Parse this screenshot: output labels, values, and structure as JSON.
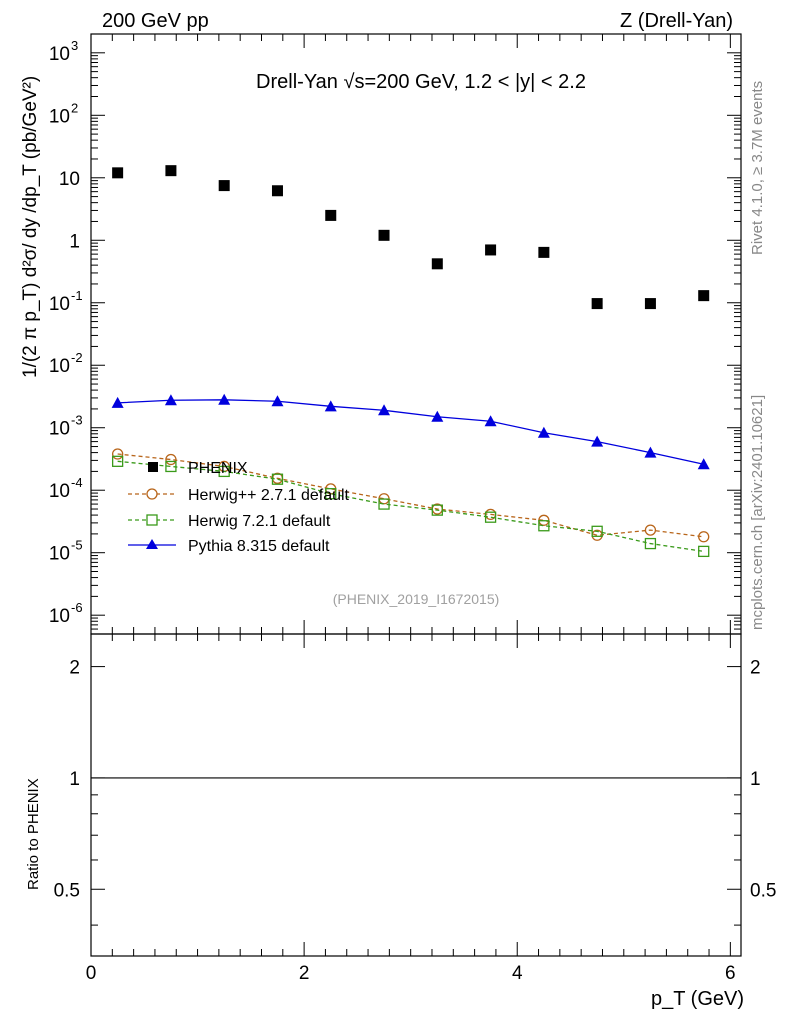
{
  "header": {
    "left": "200 GeV pp",
    "right": "Z (Drell-Yan)"
  },
  "side_labels": {
    "rivet": "Rivet 4.1.0, ≥ 3.7M events",
    "mcplots": "mcplots.cern.ch [arXiv:2401.10621]"
  },
  "reference": "(PHENIX_2019_I1672015)",
  "colors": {
    "phenix": "#000000",
    "herwigpp": "#b8651a",
    "herwig7": "#3a9a1a",
    "pythia": "#0000dd"
  },
  "chart_data": {
    "type": "scatter",
    "title": "Drell-Yan √s=200 GeV,  1.2 < |y| < 2.2",
    "xlabel": "p_T (GeV)",
    "ylabel": "1/(2 π p_T) d²σ/ dy /dp_T (pb/GeV²)",
    "ratio_ylabel": "Ratio to PHENIX",
    "xlim": [
      0,
      6.1
    ],
    "ylim": [
      5e-07,
      2000
    ],
    "yscale": "log",
    "ratio_ylim": [
      0.33,
      2.45
    ],
    "ratio_ticks": [
      0.5,
      1,
      2
    ],
    "x_ticks": [
      0,
      2,
      4,
      6
    ],
    "x": [
      0.25,
      0.75,
      1.25,
      1.75,
      2.25,
      2.75,
      3.25,
      3.75,
      4.25,
      4.75,
      5.25,
      5.75
    ],
    "series": [
      {
        "name": "PHENIX",
        "key": "phenix",
        "marker": "square-filled",
        "values": [
          12,
          13,
          7.5,
          6.2,
          2.5,
          1.2,
          0.42,
          0.7,
          0.64,
          0.097,
          0.097,
          0.13
        ]
      },
      {
        "name": "Herwig++ 2.7.1 default",
        "key": "herwigpp",
        "marker": "circle-open",
        "line": "dashed",
        "values": [
          0.00038,
          0.00031,
          0.00024,
          0.000155,
          0.000105,
          7.3e-05,
          5e-05,
          4.1e-05,
          3.3e-05,
          1.9e-05,
          2.3e-05,
          1.8e-05
        ]
      },
      {
        "name": "Herwig 7.2.1 default",
        "key": "herwig7",
        "marker": "square-open",
        "line": "dashed",
        "values": [
          0.00029,
          0.00024,
          0.0002,
          0.00015,
          8.8e-05,
          6e-05,
          4.8e-05,
          3.7e-05,
          2.7e-05,
          2.2e-05,
          1.4e-05,
          1.05e-05
        ]
      },
      {
        "name": "Pythia 8.315 default",
        "key": "pythia",
        "marker": "triangle-filled",
        "line": "solid",
        "values": [
          0.0025,
          0.00275,
          0.0028,
          0.00265,
          0.0022,
          0.0019,
          0.0015,
          0.00127,
          0.00083,
          0.0006,
          0.0004,
          0.00026
        ]
      }
    ]
  }
}
